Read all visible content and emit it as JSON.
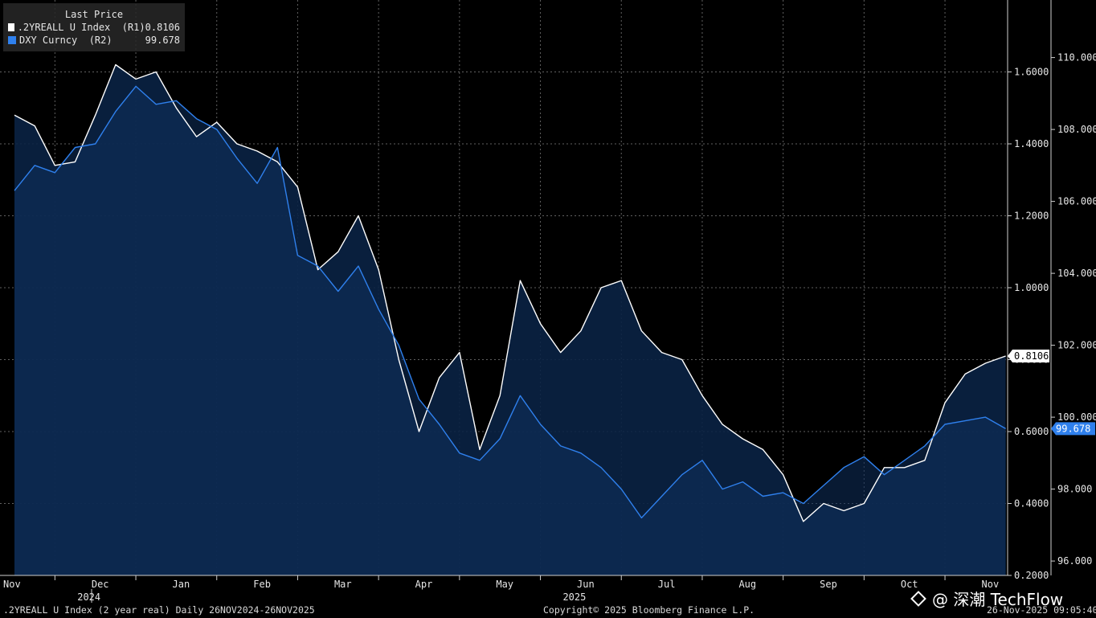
{
  "legend": {
    "title": "Last Price",
    "items": [
      {
        "name": ".2YREALL U Index  (R1)",
        "value": "0.8106",
        "color": "#ffffff"
      },
      {
        "name": "DXY Curncy  (R2)",
        "value": "99.678",
        "color": "#2f80ed"
      }
    ]
  },
  "footer": {
    "left": ".2YREALL U Index (2 year real) Daily 26NOV2024-26NOV2025",
    "center": "Copyright© 2025 Bloomberg Finance L.P.",
    "right": "26-Nov-2025 09:05:40"
  },
  "watermark": "@ 深潮 TechFlow",
  "chart_data": {
    "type": "line",
    "x_ticks": [
      "Nov",
      "Dec",
      "Jan",
      "Feb",
      "Mar",
      "Apr",
      "May",
      "Jun",
      "Jul",
      "Aug",
      "Sep",
      "Oct",
      "Nov"
    ],
    "x_years": [
      {
        "label": "2024",
        "month_index": 1
      },
      {
        "label": "2025",
        "month_index": 7
      }
    ],
    "grid": true,
    "legend_position": "top-left",
    "axes": {
      "r1": {
        "ylim": [
          0.2,
          1.8
        ],
        "ticks": [
          "0.2000",
          "0.4000",
          "0.6000",
          "0.8000",
          "1.0000",
          "1.2000",
          "1.4000",
          "1.6000"
        ]
      },
      "r2": {
        "ylim": [
          95.6,
          111.6
        ],
        "ticks": [
          "96.000",
          "98.000",
          "100.000",
          "102.000",
          "104.000",
          "106.000",
          "108.000",
          "110.000"
        ]
      }
    },
    "last_labels": {
      "r1": "0.8106",
      "r2": "99.678"
    },
    "series": [
      {
        "name": ".2YREALL U Index  (R1)",
        "axis": "r1",
        "color": "#ffffff",
        "x_month": [
          0,
          0.25,
          0.5,
          0.75,
          1.0,
          1.25,
          1.5,
          1.75,
          2.0,
          2.25,
          2.5,
          2.75,
          3.0,
          3.25,
          3.5,
          3.75,
          4.0,
          4.25,
          4.5,
          4.75,
          5.0,
          5.25,
          5.5,
          5.75,
          6.0,
          6.25,
          6.5,
          6.75,
          7.0,
          7.25,
          7.5,
          7.75,
          8.0,
          8.25,
          8.5,
          8.75,
          9.0,
          9.25,
          9.5,
          9.75,
          10.0,
          10.25,
          10.5,
          10.75,
          11.0,
          11.25,
          11.5,
          11.75,
          12.0,
          12.25
        ],
        "values": [
          1.48,
          1.45,
          1.34,
          1.35,
          1.48,
          1.62,
          1.58,
          1.6,
          1.5,
          1.42,
          1.46,
          1.4,
          1.38,
          1.35,
          1.28,
          1.05,
          1.1,
          1.2,
          1.05,
          0.8,
          0.6,
          0.75,
          0.82,
          0.55,
          0.7,
          1.02,
          0.9,
          0.82,
          0.88,
          1.0,
          1.02,
          0.88,
          0.82,
          0.8,
          0.7,
          0.62,
          0.58,
          0.55,
          0.48,
          0.35,
          0.4,
          0.38,
          0.4,
          0.5,
          0.5,
          0.52,
          0.68,
          0.76,
          0.79,
          0.81
        ]
      },
      {
        "name": "DXY Curncy  (R2)",
        "axis": "r2",
        "color": "#2f80ed",
        "x_month": [
          0,
          0.25,
          0.5,
          0.75,
          1.0,
          1.25,
          1.5,
          1.75,
          2.0,
          2.25,
          2.5,
          2.75,
          3.0,
          3.25,
          3.5,
          3.75,
          4.0,
          4.25,
          4.5,
          4.75,
          5.0,
          5.25,
          5.5,
          5.75,
          6.0,
          6.25,
          6.5,
          6.75,
          7.0,
          7.25,
          7.5,
          7.75,
          8.0,
          8.25,
          8.5,
          8.75,
          9.0,
          9.25,
          9.5,
          9.75,
          10.0,
          10.25,
          10.5,
          10.75,
          11.0,
          11.25,
          11.5,
          11.75,
          12.0,
          12.25
        ],
        "values": [
          106.3,
          107.0,
          106.8,
          107.5,
          107.6,
          108.5,
          109.2,
          108.7,
          108.8,
          108.3,
          108.0,
          107.2,
          106.5,
          107.5,
          104.5,
          104.2,
          103.5,
          104.2,
          103.0,
          102.0,
          100.5,
          99.8,
          99.0,
          98.8,
          99.4,
          100.6,
          99.8,
          99.2,
          99.0,
          98.6,
          98.0,
          97.2,
          97.8,
          98.4,
          98.8,
          98.0,
          98.2,
          97.8,
          97.9,
          97.6,
          98.1,
          98.6,
          98.9,
          98.4,
          98.8,
          99.2,
          99.8,
          99.9,
          100.0,
          99.68
        ]
      }
    ]
  }
}
